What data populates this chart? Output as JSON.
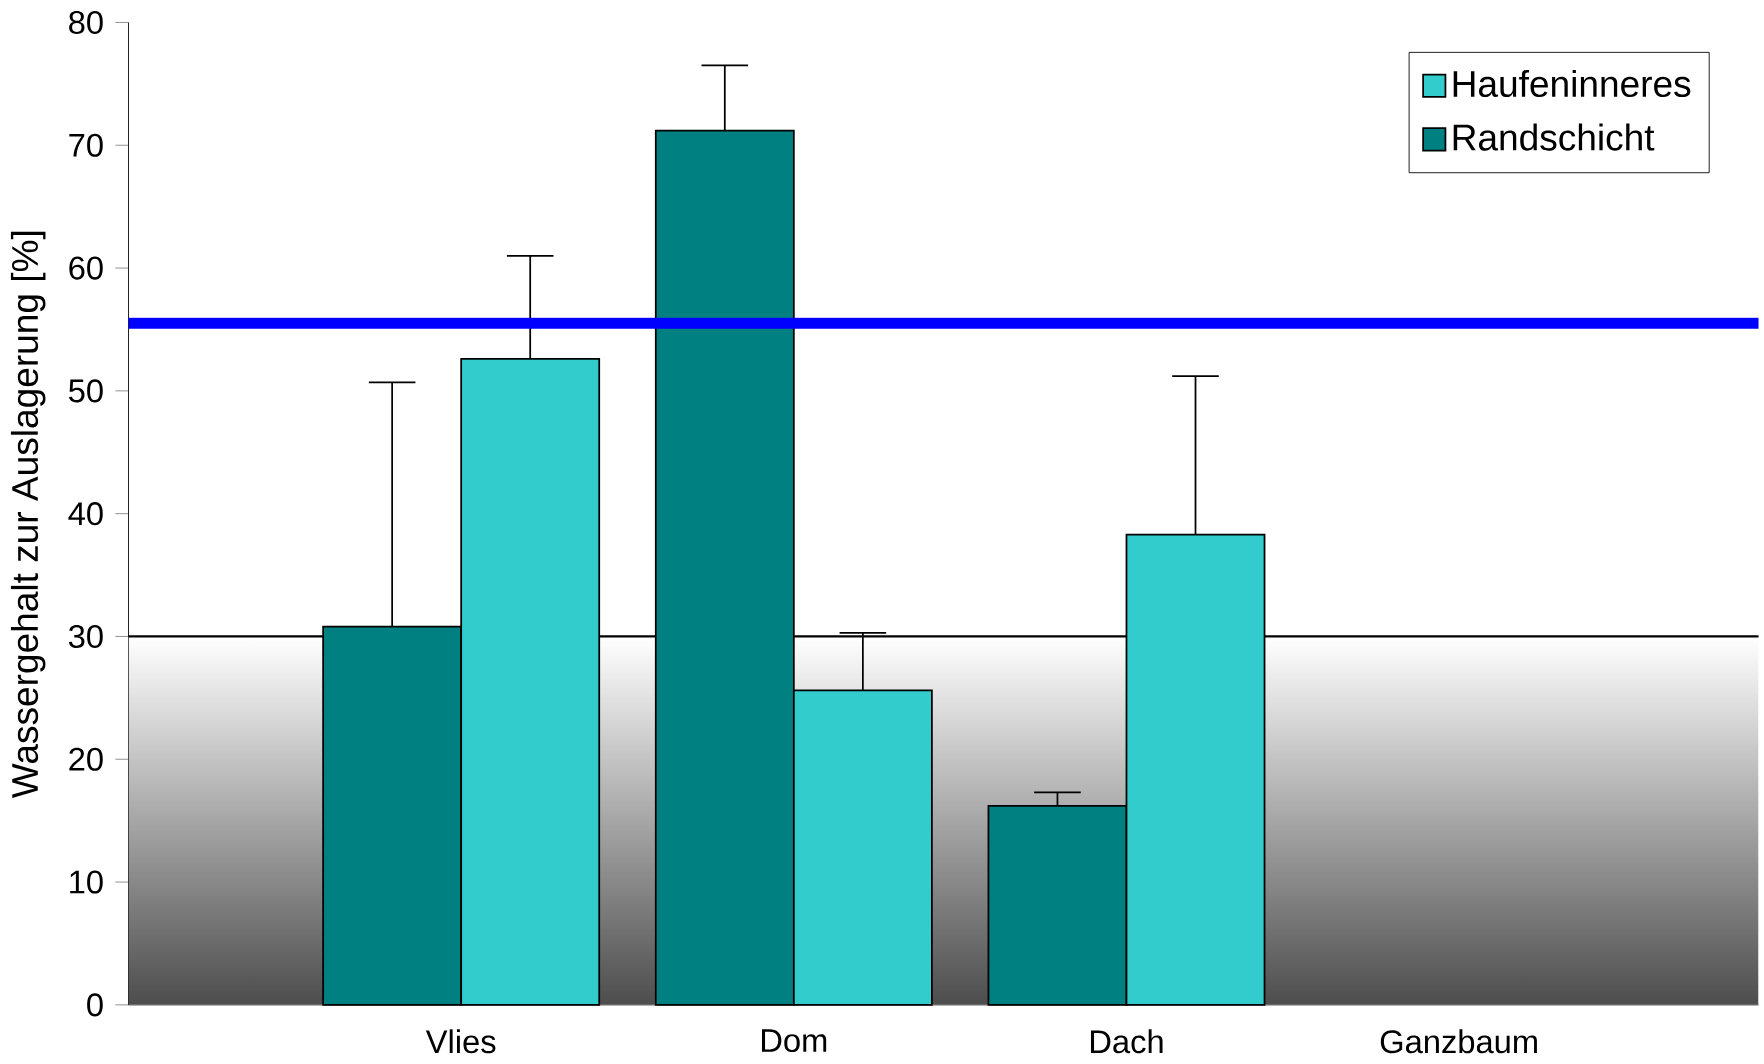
{
  "chart_data": {
    "type": "bar",
    "ylabel": "Wassergehalt zur Auslagerung [%]",
    "categories": [
      "Vlies",
      "Dom",
      "Dach",
      "Ganzbaum"
    ],
    "series": [
      {
        "name": "Randschicht",
        "color": "#008080",
        "values": [
          30.8,
          71.2,
          16.2,
          null
        ],
        "errors": [
          [
            30.8,
            50.7
          ],
          [
            71.2,
            76.5
          ],
          [
            16.2,
            17.3
          ],
          null
        ]
      },
      {
        "name": "Haufeninneres",
        "color": "#33cccc",
        "values": [
          52.6,
          25.6,
          38.3,
          null
        ],
        "errors": [
          [
            52.6,
            61.0
          ],
          [
            25.6,
            30.3
          ],
          [
            38.3,
            51.2
          ],
          null
        ]
      }
    ],
    "ylim": [
      0,
      80
    ],
    "yticks": [
      0,
      10,
      20,
      30,
      40,
      50,
      60,
      70,
      80
    ],
    "ref_lines": [
      {
        "axis": "y",
        "value": 55.5,
        "color": "#0000ff"
      }
    ],
    "bands": [
      {
        "axis": "y",
        "from": 0,
        "to": 30,
        "color": "#4d4d4d"
      }
    ],
    "legend": "top right"
  }
}
